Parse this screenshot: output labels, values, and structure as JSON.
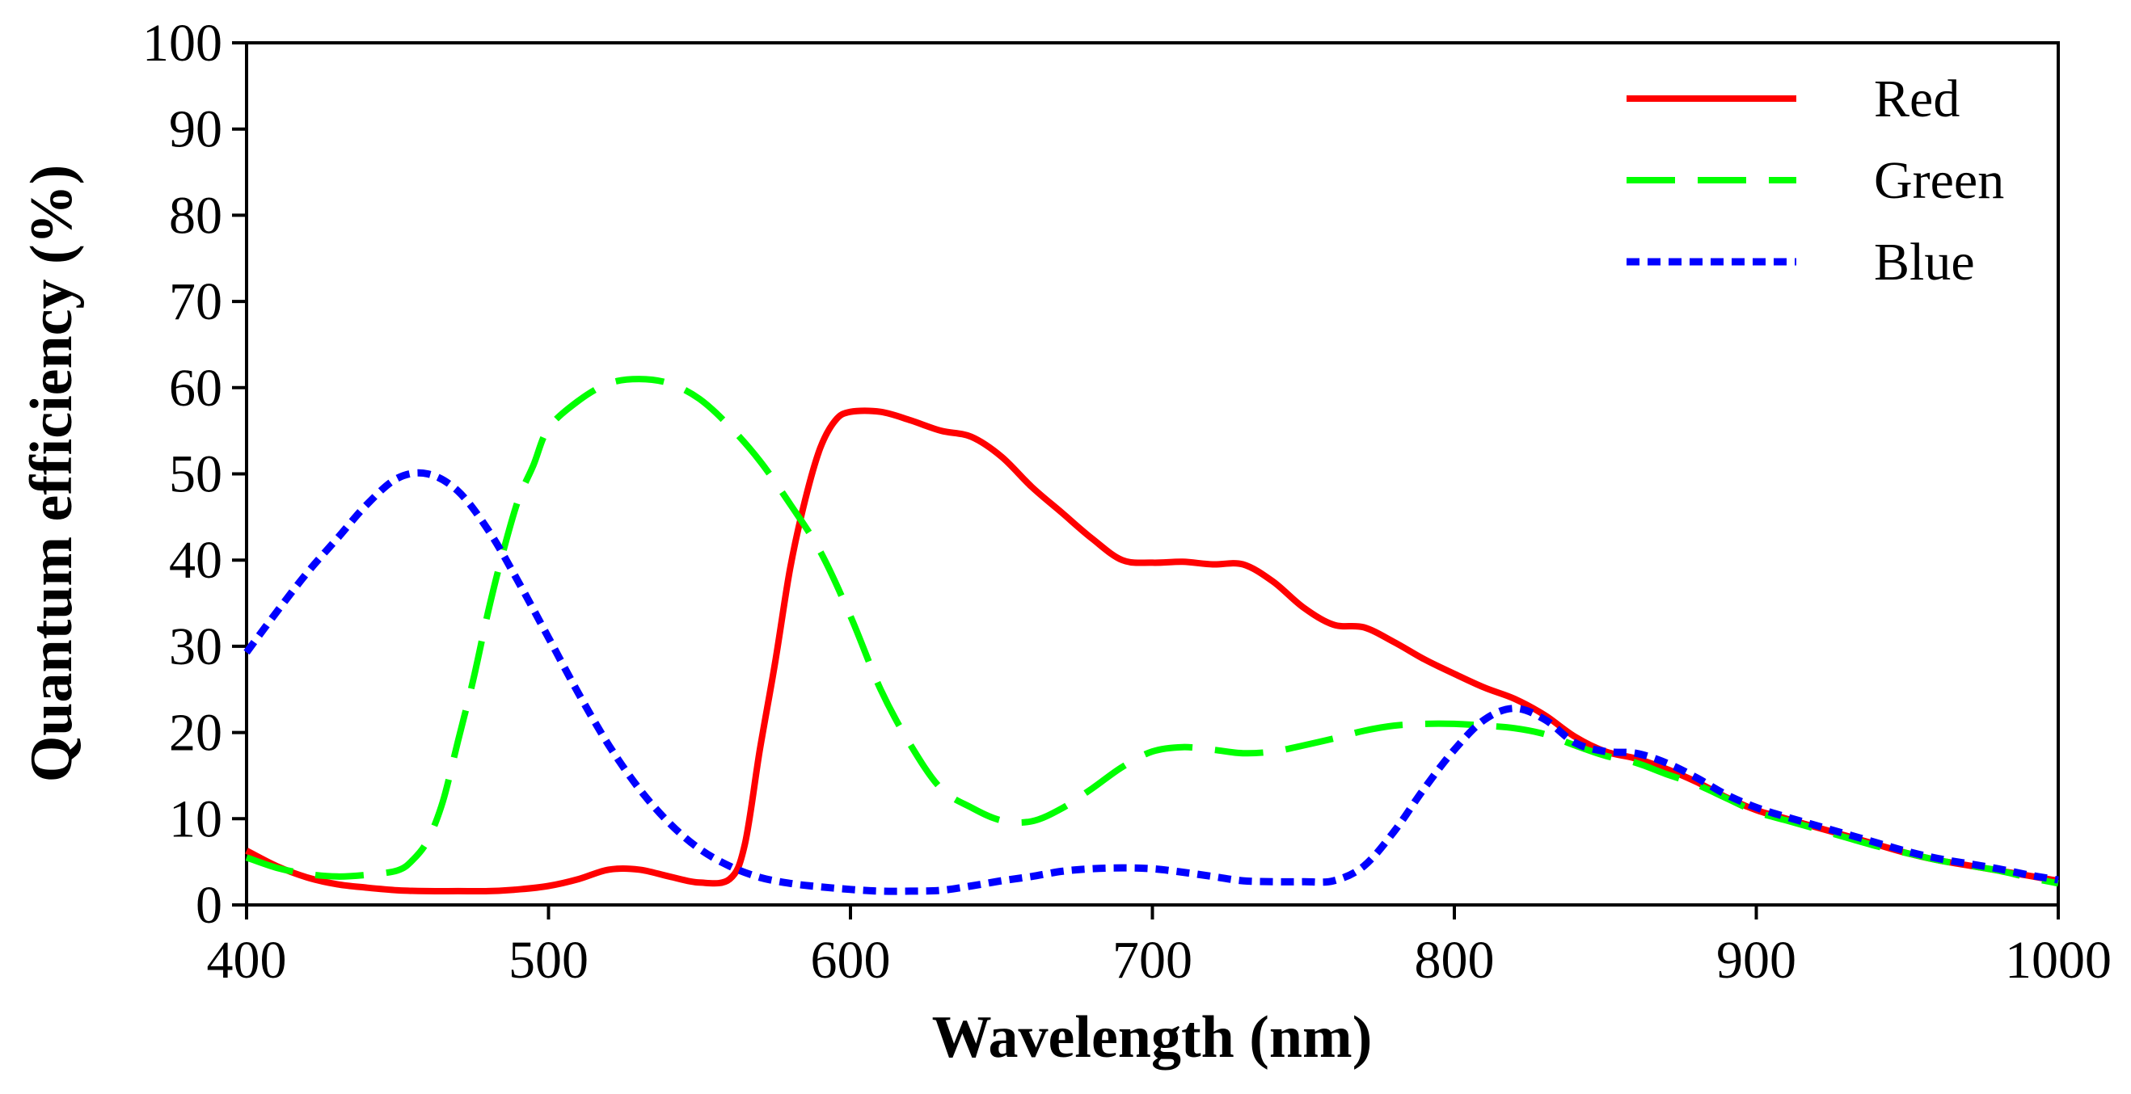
{
  "chart_data": {
    "type": "line",
    "title": "",
    "xlabel": "Wavelength (nm)",
    "ylabel": "Quantum efficiency (%)",
    "xlim": [
      400,
      1000
    ],
    "ylim": [
      0,
      100
    ],
    "xticks": [
      400,
      500,
      600,
      700,
      800,
      900,
      1000
    ],
    "yticks": [
      0,
      10,
      20,
      30,
      40,
      50,
      60,
      70,
      80,
      90,
      100
    ],
    "grid": false,
    "legend_position": "top-right",
    "series": [
      {
        "name": "Red",
        "color": "#ff0000",
        "style": "solid",
        "points": [
          [
            400,
            6.3
          ],
          [
            410,
            4.5
          ],
          [
            420,
            3.2
          ],
          [
            430,
            2.4
          ],
          [
            440,
            2.0
          ],
          [
            450,
            1.7
          ],
          [
            460,
            1.6
          ],
          [
            470,
            1.6
          ],
          [
            480,
            1.6
          ],
          [
            490,
            1.8
          ],
          [
            500,
            2.2
          ],
          [
            510,
            3.0
          ],
          [
            520,
            4.1
          ],
          [
            530,
            4.1
          ],
          [
            540,
            3.3
          ],
          [
            550,
            2.6
          ],
          [
            560,
            3.0
          ],
          [
            565,
            7
          ],
          [
            570,
            18
          ],
          [
            575,
            28
          ],
          [
            580,
            39
          ],
          [
            585,
            47
          ],
          [
            590,
            53
          ],
          [
            595,
            56.2
          ],
          [
            600,
            57.2
          ],
          [
            610,
            57.2
          ],
          [
            620,
            56.2
          ],
          [
            630,
            55.0
          ],
          [
            640,
            54.3
          ],
          [
            650,
            52
          ],
          [
            660,
            48.5
          ],
          [
            670,
            45.5
          ],
          [
            680,
            42.5
          ],
          [
            690,
            40.0
          ],
          [
            700,
            39.7
          ],
          [
            710,
            39.8
          ],
          [
            720,
            39.5
          ],
          [
            730,
            39.5
          ],
          [
            740,
            37.5
          ],
          [
            750,
            34.5
          ],
          [
            760,
            32.5
          ],
          [
            770,
            32.2
          ],
          [
            780,
            30.5
          ],
          [
            790,
            28.5
          ],
          [
            800,
            26.8
          ],
          [
            810,
            25.2
          ],
          [
            820,
            23.9
          ],
          [
            830,
            22
          ],
          [
            840,
            19.5
          ],
          [
            850,
            17.8
          ],
          [
            860,
            17.0
          ],
          [
            870,
            15.8
          ],
          [
            880,
            14.3
          ],
          [
            890,
            12.5
          ],
          [
            900,
            11.0
          ],
          [
            910,
            10.0
          ],
          [
            920,
            9.0
          ],
          [
            930,
            8.0
          ],
          [
            940,
            7.0
          ],
          [
            950,
            6.0
          ],
          [
            960,
            5.2
          ],
          [
            970,
            4.6
          ],
          [
            980,
            4.0
          ],
          [
            990,
            3.4
          ],
          [
            1000,
            2.8
          ]
        ]
      },
      {
        "name": "Green",
        "color": "#00ff00",
        "style": "dashed",
        "points": [
          [
            400,
            5.5
          ],
          [
            410,
            4.3
          ],
          [
            420,
            3.6
          ],
          [
            430,
            3.3
          ],
          [
            440,
            3.5
          ],
          [
            450,
            4.0
          ],
          [
            455,
            5.2
          ],
          [
            460,
            7.5
          ],
          [
            465,
            12
          ],
          [
            470,
            19
          ],
          [
            475,
            26
          ],
          [
            480,
            34
          ],
          [
            485,
            41
          ],
          [
            490,
            47
          ],
          [
            495,
            51
          ],
          [
            500,
            55.3
          ],
          [
            510,
            58.5
          ],
          [
            520,
            60.5
          ],
          [
            530,
            61.0
          ],
          [
            540,
            60.5
          ],
          [
            550,
            58.7
          ],
          [
            560,
            55.5
          ],
          [
            570,
            51.5
          ],
          [
            580,
            46.5
          ],
          [
            590,
            41
          ],
          [
            600,
            33.5
          ],
          [
            610,
            25
          ],
          [
            620,
            18.5
          ],
          [
            630,
            13.5
          ],
          [
            640,
            11.3
          ],
          [
            650,
            9.8
          ],
          [
            660,
            9.7
          ],
          [
            670,
            11.2
          ],
          [
            680,
            13.5
          ],
          [
            690,
            16.0
          ],
          [
            700,
            17.8
          ],
          [
            710,
            18.3
          ],
          [
            720,
            18.0
          ],
          [
            730,
            17.6
          ],
          [
            740,
            17.8
          ],
          [
            750,
            18.5
          ],
          [
            760,
            19.3
          ],
          [
            770,
            20.2
          ],
          [
            780,
            20.8
          ],
          [
            790,
            21.0
          ],
          [
            800,
            21.0
          ],
          [
            810,
            20.8
          ],
          [
            820,
            20.5
          ],
          [
            830,
            19.8
          ],
          [
            840,
            18.5
          ],
          [
            850,
            17.3
          ],
          [
            860,
            16.5
          ],
          [
            870,
            15.2
          ],
          [
            880,
            14.0
          ],
          [
            890,
            12.4
          ],
          [
            900,
            10.8
          ],
          [
            910,
            9.8
          ],
          [
            920,
            8.8
          ],
          [
            930,
            7.8
          ],
          [
            940,
            6.8
          ],
          [
            950,
            6.0
          ],
          [
            960,
            5.2
          ],
          [
            970,
            4.6
          ],
          [
            980,
            4.0
          ],
          [
            990,
            3.2
          ],
          [
            1000,
            2.5
          ]
        ]
      },
      {
        "name": "Blue",
        "color": "#0000ff",
        "style": "dotted",
        "points": [
          [
            400,
            29.3
          ],
          [
            410,
            34
          ],
          [
            420,
            38.5
          ],
          [
            430,
            42.5
          ],
          [
            440,
            46.5
          ],
          [
            450,
            49.5
          ],
          [
            460,
            50.0
          ],
          [
            470,
            48
          ],
          [
            480,
            43.5
          ],
          [
            490,
            37.5
          ],
          [
            500,
            31
          ],
          [
            510,
            24.5
          ],
          [
            520,
            18.5
          ],
          [
            530,
            13.5
          ],
          [
            540,
            9.5
          ],
          [
            550,
            6.5
          ],
          [
            560,
            4.5
          ],
          [
            570,
            3.2
          ],
          [
            580,
            2.5
          ],
          [
            590,
            2.1
          ],
          [
            600,
            1.8
          ],
          [
            610,
            1.6
          ],
          [
            620,
            1.6
          ],
          [
            630,
            1.7
          ],
          [
            640,
            2.2
          ],
          [
            650,
            2.8
          ],
          [
            660,
            3.3
          ],
          [
            670,
            3.9
          ],
          [
            680,
            4.2
          ],
          [
            690,
            4.3
          ],
          [
            700,
            4.2
          ],
          [
            710,
            3.8
          ],
          [
            720,
            3.3
          ],
          [
            730,
            2.8
          ],
          [
            740,
            2.7
          ],
          [
            750,
            2.7
          ],
          [
            760,
            2.8
          ],
          [
            770,
            4.5
          ],
          [
            780,
            8.5
          ],
          [
            790,
            13.5
          ],
          [
            800,
            18.0
          ],
          [
            810,
            21.5
          ],
          [
            820,
            22.8
          ],
          [
            830,
            21.5
          ],
          [
            840,
            18.8
          ],
          [
            850,
            17.8
          ],
          [
            860,
            17.6
          ],
          [
            870,
            16.5
          ],
          [
            880,
            14.8
          ],
          [
            890,
            12.8
          ],
          [
            900,
            11.3
          ],
          [
            910,
            10.2
          ],
          [
            920,
            9.2
          ],
          [
            930,
            8.2
          ],
          [
            940,
            7.2
          ],
          [
            950,
            6.2
          ],
          [
            960,
            5.4
          ],
          [
            970,
            4.8
          ],
          [
            980,
            4.2
          ],
          [
            990,
            3.5
          ],
          [
            1000,
            2.9
          ]
        ]
      }
    ]
  }
}
